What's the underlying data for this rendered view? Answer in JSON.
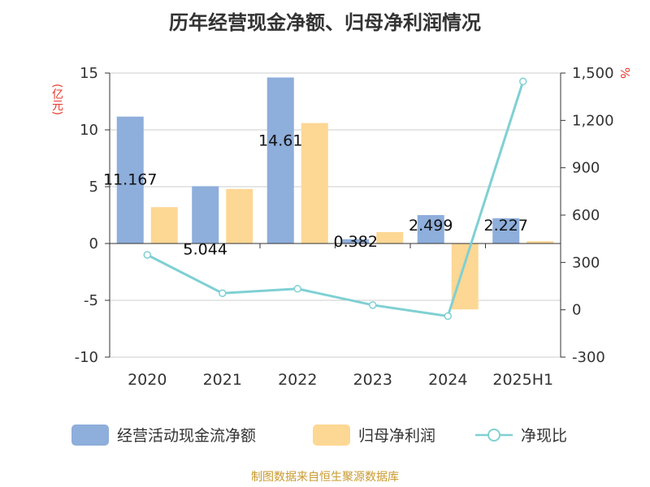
{
  "title": "历年经营现金净额、归母净利润情况",
  "footer": "制图数据来自恒生聚源数据库",
  "chart_data": {
    "type": "bar",
    "categories": [
      "2020",
      "2021",
      "2022",
      "2023",
      "2024",
      "2025H1"
    ],
    "series": [
      {
        "name": "经营活动现金流净额",
        "kind": "bar",
        "axis": "left",
        "color": "#8eaedb",
        "values": [
          11.167,
          5.044,
          14.61,
          0.382,
          2.499,
          2.227
        ],
        "labels": [
          "11.167",
          "5.044",
          "14.61",
          "0.382",
          "2.499",
          "2.227"
        ]
      },
      {
        "name": "归母净利润",
        "kind": "bar",
        "axis": "left",
        "color": "#fdd794",
        "values": [
          3.2,
          4.8,
          10.6,
          1.0,
          -5.8,
          0.2
        ]
      },
      {
        "name": "净现比",
        "kind": "line",
        "axis": "right",
        "color": "#7fd0d3",
        "values": [
          348,
          105,
          133,
          30,
          -40,
          1447
        ]
      }
    ],
    "y_left": {
      "unit": "(亿元)",
      "ylim": [
        -10,
        15
      ],
      "ticks": [
        15,
        10,
        5,
        0,
        -5,
        -10
      ],
      "tick_labels": [
        "15",
        "10",
        "5",
        "0",
        "-5",
        "-10"
      ]
    },
    "y_right": {
      "unit": "%",
      "ylim": [
        -300,
        1500
      ],
      "ticks": [
        1500,
        1200,
        900,
        600,
        300,
        0,
        -300
      ],
      "tick_labels": [
        "1,500",
        "1,200",
        "900",
        "600",
        "300",
        "0",
        "-300"
      ]
    },
    "grid": true,
    "legend_position": "bottom"
  }
}
